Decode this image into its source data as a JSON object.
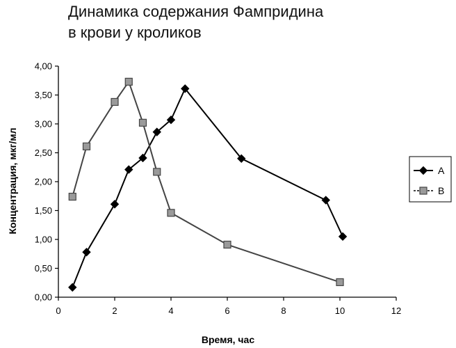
{
  "chart_data": {
    "type": "line",
    "title": "Динамика содержания Фампридина",
    "subtitle": "в крови у кроликов",
    "xlabel": "Время, час",
    "ylabel": "Концентрация, мкг/мл",
    "xlim": [
      0,
      12
    ],
    "ylim": [
      0,
      4
    ],
    "x_ticks": [
      "0",
      "2",
      "4",
      "6",
      "8",
      "10",
      "12"
    ],
    "y_ticks": [
      "0,00",
      "0,50",
      "1,00",
      "1,50",
      "2,00",
      "2,50",
      "3,00",
      "3,50",
      "4,00"
    ],
    "grid": false,
    "legend_position": "right",
    "series": [
      {
        "name": "A",
        "marker": "diamond",
        "color": "#000000",
        "x": [
          0.5,
          1.0,
          2.0,
          2.5,
          3.0,
          3.5,
          4.0,
          4.5,
          6.5,
          9.5,
          10.1
        ],
        "y": [
          0.17,
          0.78,
          1.61,
          2.21,
          2.41,
          2.86,
          3.07,
          3.61,
          2.4,
          1.68,
          1.05
        ]
      },
      {
        "name": "B",
        "marker": "square",
        "color": "#6e6e6e",
        "x": [
          0.5,
          1.0,
          2.0,
          2.5,
          3.0,
          3.5,
          4.0,
          6.0,
          10.0
        ],
        "y": [
          1.74,
          2.61,
          3.38,
          3.73,
          3.02,
          2.17,
          1.46,
          0.91,
          0.26
        ]
      }
    ]
  }
}
